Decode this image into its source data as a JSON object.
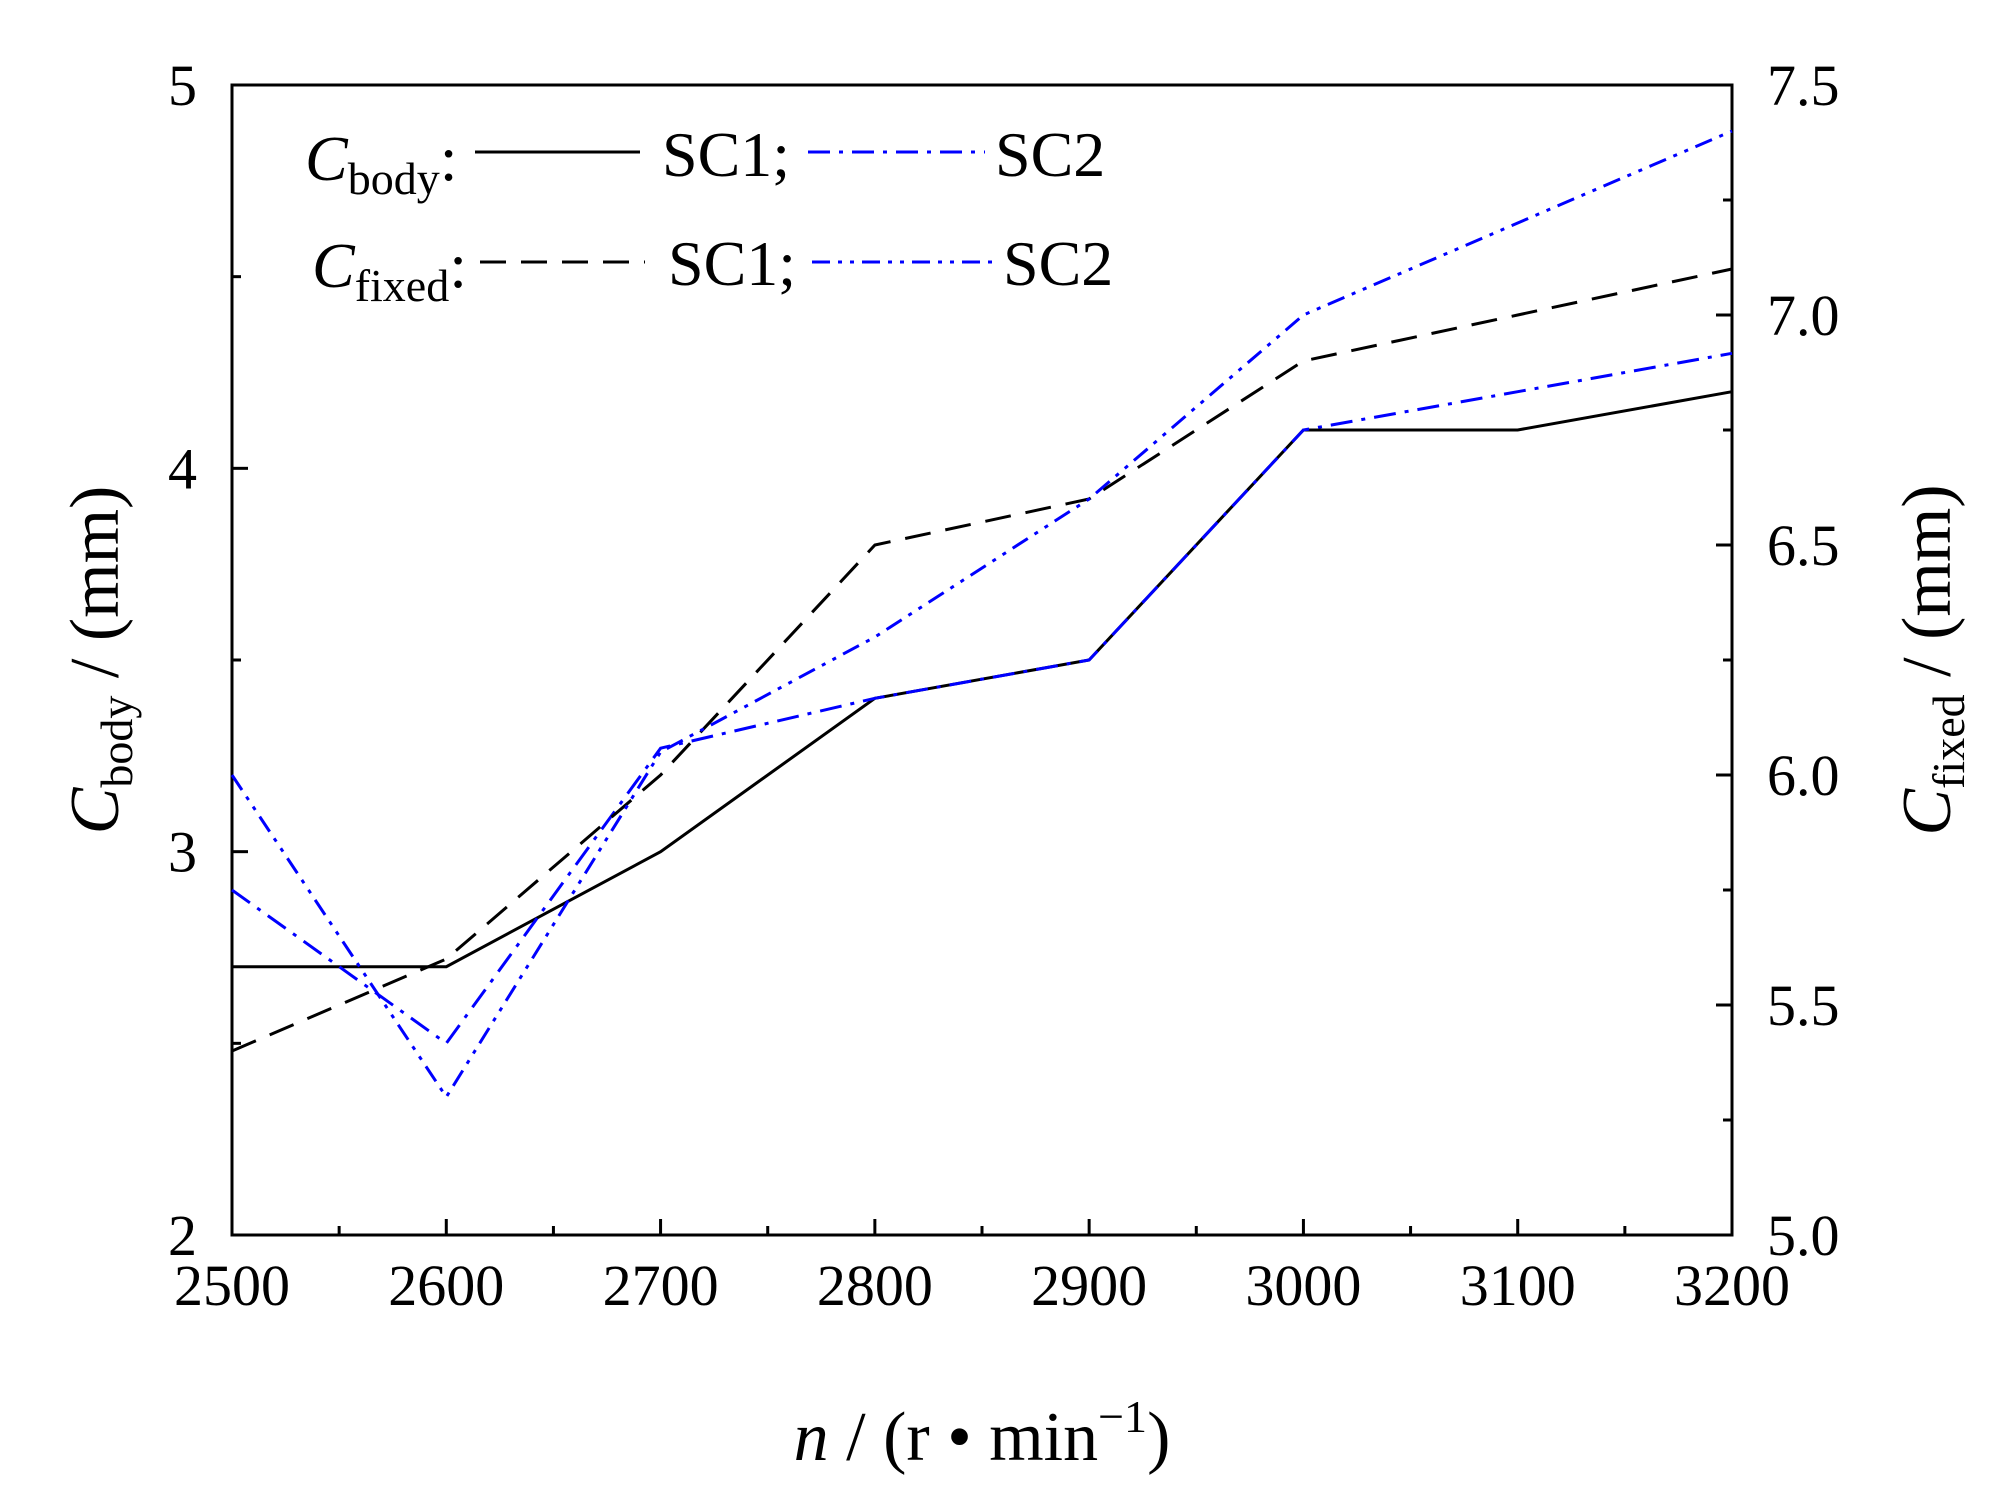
{
  "chart_data": {
    "type": "line",
    "x": [
      2500,
      2600,
      2700,
      2800,
      2900,
      3000,
      3100,
      3200
    ],
    "xlim": [
      2500,
      3200
    ],
    "xticks": [
      "2500",
      "2600",
      "2700",
      "2800",
      "2900",
      "3000",
      "3100",
      "3200"
    ],
    "xlabel": {
      "var": "n",
      "pre_unit": " / (r • min",
      "exp": "−1",
      "post_unit": ")"
    },
    "y_left": {
      "lim": [
        2,
        5
      ],
      "ticks": [
        "2",
        "3",
        "4",
        "5"
      ],
      "label": {
        "var": "C",
        "sub": "body",
        "unit": " / (mm)"
      }
    },
    "y_right": {
      "lim": [
        5.0,
        7.5
      ],
      "ticks": [
        "5.0",
        "5.5",
        "6.0",
        "6.5",
        "7.0",
        "7.5"
      ],
      "label": {
        "var": "C",
        "sub": "fixed",
        "unit": " / (mm)"
      }
    },
    "series": [
      {
        "name": "C_body SC1",
        "axis": "left",
        "color": "#000000",
        "style": "solid",
        "values": [
          2.7,
          2.7,
          3.0,
          3.4,
          3.5,
          4.1,
          4.1,
          4.2
        ]
      },
      {
        "name": "C_body SC2",
        "axis": "left",
        "color": "#0000ff",
        "style": "dashdot",
        "values": [
          2.9,
          2.5,
          3.27,
          3.4,
          3.5,
          4.1,
          4.2,
          4.3
        ]
      },
      {
        "name": "C_fixed SC1",
        "axis": "right",
        "color": "#000000",
        "style": "dash",
        "values": [
          5.4,
          5.6,
          6.0,
          6.5,
          6.6,
          6.9,
          7.0,
          7.1
        ]
      },
      {
        "name": "C_fixed SC2",
        "axis": "right",
        "color": "#0000ff",
        "style": "dashdotdot",
        "values": [
          6.0,
          5.3,
          6.05,
          6.3,
          6.6,
          7.0,
          7.2,
          7.4
        ]
      }
    ],
    "legend": {
      "position": "top-left",
      "rows": [
        {
          "var": "C",
          "sub": "body",
          "colon": ":",
          "entries": [
            "SC1;",
            "SC2"
          ]
        },
        {
          "var": "C",
          "sub": "fixed",
          "colon": ":",
          "entries": [
            "SC1;",
            "SC2"
          ]
        }
      ]
    }
  }
}
